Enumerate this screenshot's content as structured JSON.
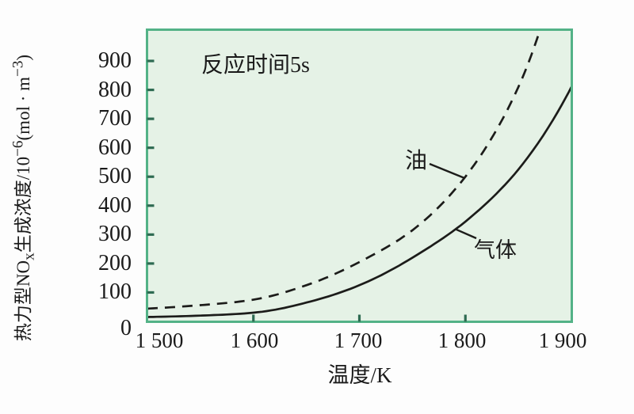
{
  "chart_data": {
    "type": "line",
    "annotation": "反应时间5s",
    "xlabel": "温度/K",
    "ylabel": "热力型NOx生成浓度/10⁻⁶(mol · m⁻³)",
    "ylabel_parts": {
      "prefix": "热力型NO",
      "sub": "x",
      "mid": "生成浓度/10",
      "sup1": "−6",
      "unit_open": "(mol · m",
      "sup2": "−3",
      "unit_close": ")"
    },
    "x_ticks": [
      {
        "v": 1500,
        "label": "1 500"
      },
      {
        "v": 1600,
        "label": "1 600"
      },
      {
        "v": 1700,
        "label": "1 700"
      },
      {
        "v": 1800,
        "label": "1 800"
      },
      {
        "v": 1900,
        "label": "1 900"
      }
    ],
    "y_ticks": [
      {
        "v": 0,
        "label": "0"
      },
      {
        "v": 100,
        "label": "100"
      },
      {
        "v": 200,
        "label": "200"
      },
      {
        "v": 300,
        "label": "300"
      },
      {
        "v": 400,
        "label": "400"
      },
      {
        "v": 500,
        "label": "500"
      },
      {
        "v": 600,
        "label": "600"
      },
      {
        "v": 700,
        "label": "700"
      },
      {
        "v": 800,
        "label": "800"
      },
      {
        "v": 900,
        "label": "900"
      }
    ],
    "xlim": [
      1500,
      1900
    ],
    "ylim": [
      0,
      1008
    ],
    "grid": false,
    "legend_position": "inline-labels",
    "series": [
      {
        "name": "气体",
        "style": "solid",
        "points": [
          [
            1500,
            15
          ],
          [
            1550,
            20
          ],
          [
            1600,
            30
          ],
          [
            1650,
            65
          ],
          [
            1700,
            125
          ],
          [
            1750,
            220
          ],
          [
            1800,
            345
          ],
          [
            1850,
            525
          ],
          [
            1900,
            810
          ]
        ]
      },
      {
        "name": "油",
        "style": "dashed",
        "points": [
          [
            1500,
            44
          ],
          [
            1550,
            56
          ],
          [
            1600,
            75
          ],
          [
            1650,
            125
          ],
          [
            1700,
            205
          ],
          [
            1750,
            315
          ],
          [
            1800,
            500
          ],
          [
            1850,
            810
          ],
          [
            1875,
            1060
          ],
          [
            1900,
            1390
          ]
        ]
      }
    ],
    "colors": {
      "page_bg": "#fdfdfd",
      "plot_bg": "#e5f2e6",
      "plot_border": "#53b287",
      "curve": "#1c1c1a",
      "tick": "#2e6b52",
      "text": "#1a1a1a"
    }
  }
}
